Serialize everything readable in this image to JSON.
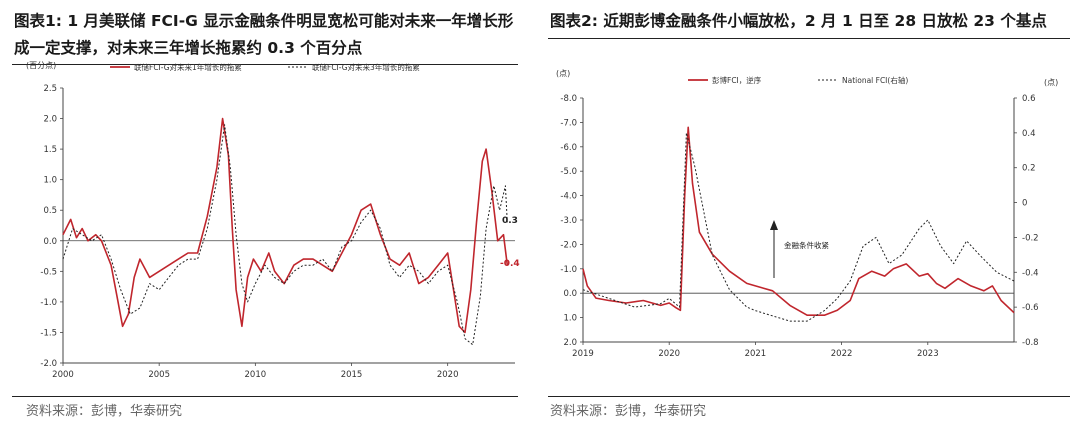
{
  "charts": [
    {
      "id": "left",
      "title": "图表1:  1 月美联储 FCI-G 显示金融条件明显宽松可能对未来一年增长形成一定支撑，对未来三年增长拖累约 0.3 个百分点",
      "unit_label": "(百分点)",
      "source": "资料来源：彭博，华泰研究",
      "end_labels": [
        "0.3",
        "-0.4"
      ]
    },
    {
      "id": "right",
      "title": "图表2:  近期彭博金融条件小幅放松，2 月 1 日至 28 日放松 23 个基点",
      "unit_label_left": "(点)",
      "unit_label_right": "(点)",
      "annotation": "金融条件收紧",
      "source": "资料来源：彭博，华泰研究"
    }
  ],
  "colors": {
    "red": "#c0262d",
    "black": "#222222",
    "zero_line": "#444444"
  },
  "chart_data": [
    {
      "type": "line",
      "title": "",
      "ylabel": "(百分点)",
      "ylim": [
        -2.0,
        2.5
      ],
      "xlim": [
        2000,
        2023.5
      ],
      "x_ticks": [
        "2000",
        "2005",
        "2010",
        "2015",
        "2020"
      ],
      "y_ticks": [
        "2.5",
        "2.0",
        "1.5",
        "1.0",
        "0.5",
        "0.0",
        "-0.5",
        "-1.0",
        "-1.5",
        "-2.0"
      ],
      "legend": "top",
      "series": [
        {
          "name": "联储FCI-G对未来1年增长的拖累",
          "style": "solid",
          "color": "#c0262d",
          "x": [
            2000.0,
            2000.4,
            2000.7,
            2001.0,
            2001.3,
            2001.7,
            2002.0,
            2002.5,
            2002.8,
            2003.1,
            2003.4,
            2003.7,
            2004.0,
            2004.5,
            2005.0,
            2005.5,
            2006.0,
            2006.5,
            2007.0,
            2007.5,
            2008.0,
            2008.3,
            2008.6,
            2008.8,
            2009.0,
            2009.3,
            2009.6,
            2009.9,
            2010.3,
            2010.7,
            2011.0,
            2011.5,
            2012.0,
            2012.5,
            2013.0,
            2013.5,
            2014.0,
            2014.5,
            2015.0,
            2015.5,
            2016.0,
            2016.5,
            2017.0,
            2017.5,
            2018.0,
            2018.5,
            2019.0,
            2019.5,
            2020.0,
            2020.3,
            2020.6,
            2020.9,
            2021.2,
            2021.5,
            2021.8,
            2022.0,
            2022.3,
            2022.6,
            2022.9,
            2023.1
          ],
          "values": [
            0.1,
            0.35,
            0.05,
            0.2,
            0.0,
            0.1,
            0.0,
            -0.4,
            -0.9,
            -1.4,
            -1.2,
            -0.6,
            -0.3,
            -0.6,
            -0.5,
            -0.4,
            -0.3,
            -0.2,
            -0.2,
            0.4,
            1.2,
            2.0,
            1.4,
            0.2,
            -0.8,
            -1.4,
            -0.6,
            -0.3,
            -0.5,
            -0.2,
            -0.5,
            -0.7,
            -0.4,
            -0.3,
            -0.3,
            -0.4,
            -0.5,
            -0.2,
            0.1,
            0.5,
            0.6,
            0.1,
            -0.3,
            -0.4,
            -0.2,
            -0.7,
            -0.6,
            -0.4,
            -0.2,
            -0.8,
            -1.4,
            -1.5,
            -0.8,
            0.3,
            1.3,
            1.5,
            0.8,
            0.0,
            0.1,
            -0.4
          ]
        },
        {
          "name": "联储FCI-G对未来3年增长的拖累",
          "style": "dashed",
          "color": "#222222",
          "x": [
            2000.0,
            2000.5,
            2001.0,
            2001.5,
            2002.0,
            2002.5,
            2003.0,
            2003.5,
            2004.0,
            2004.5,
            2005.0,
            2005.5,
            2006.0,
            2006.5,
            2007.0,
            2007.5,
            2008.0,
            2008.4,
            2008.7,
            2009.0,
            2009.3,
            2009.6,
            2010.0,
            2010.5,
            2011.0,
            2011.5,
            2012.0,
            2012.5,
            2013.0,
            2013.5,
            2014.0,
            2014.5,
            2015.0,
            2015.5,
            2016.0,
            2016.5,
            2017.0,
            2017.5,
            2018.0,
            2018.5,
            2019.0,
            2019.5,
            2020.0,
            2020.5,
            2020.9,
            2021.3,
            2021.7,
            2022.0,
            2022.4,
            2022.7,
            2023.0,
            2023.1
          ],
          "values": [
            -0.3,
            0.2,
            0.1,
            0.0,
            0.1,
            -0.3,
            -0.8,
            -1.2,
            -1.1,
            -0.7,
            -0.8,
            -0.6,
            -0.4,
            -0.3,
            -0.3,
            0.2,
            1.0,
            1.9,
            1.2,
            0.1,
            -0.7,
            -1.0,
            -0.7,
            -0.4,
            -0.6,
            -0.7,
            -0.5,
            -0.4,
            -0.4,
            -0.3,
            -0.5,
            -0.1,
            0.0,
            0.3,
            0.5,
            0.2,
            -0.4,
            -0.6,
            -0.4,
            -0.5,
            -0.7,
            -0.5,
            -0.4,
            -1.0,
            -1.6,
            -1.7,
            -0.9,
            0.2,
            0.9,
            0.5,
            0.9,
            0.3
          ]
        }
      ]
    },
    {
      "type": "line",
      "title": "",
      "ylabel": "(点)",
      "ylim": [
        2.0,
        -8.0
      ],
      "ylim_right": [
        -0.8,
        0.6
      ],
      "xlim": [
        2019,
        2024
      ],
      "x_ticks": [
        "2019",
        "2020",
        "2021",
        "2022",
        "2023"
      ],
      "y_ticks": [
        "-8.0",
        "-7.0",
        "-6.0",
        "-5.0",
        "-4.0",
        "-3.0",
        "-2.0",
        "-1.0",
        "0.0",
        "1.0",
        "2.0"
      ],
      "y_ticks_right": [
        "0.6",
        "0.4",
        "0.2",
        "0",
        "-0.2",
        "-0.4",
        "-0.6",
        "-0.8"
      ],
      "legend": "top",
      "series": [
        {
          "name": "彭博FCI，逆序",
          "style": "solid",
          "color": "#c0262d",
          "axis": "left",
          "x": [
            2019.0,
            2019.05,
            2019.15,
            2019.3,
            2019.5,
            2019.7,
            2019.9,
            2020.0,
            2020.08,
            2020.13,
            2020.18,
            2020.22,
            2020.27,
            2020.35,
            2020.5,
            2020.7,
            2020.9,
            2021.0,
            2021.2,
            2021.4,
            2021.6,
            2021.8,
            2021.95,
            2022.1,
            2022.2,
            2022.35,
            2022.5,
            2022.6,
            2022.75,
            2022.9,
            2023.0,
            2023.1,
            2023.2,
            2023.35,
            2023.5,
            2023.65,
            2023.75,
            2023.85,
            2024.0
          ],
          "values": [
            -1.0,
            -0.3,
            0.2,
            0.3,
            0.4,
            0.3,
            0.5,
            0.4,
            0.6,
            0.7,
            -4.0,
            -6.8,
            -4.5,
            -2.5,
            -1.6,
            -0.9,
            -0.4,
            -0.3,
            -0.1,
            0.5,
            0.9,
            0.9,
            0.7,
            0.3,
            -0.6,
            -0.9,
            -0.7,
            -1.0,
            -1.2,
            -0.7,
            -0.8,
            -0.4,
            -0.2,
            -0.6,
            -0.3,
            -0.1,
            -0.3,
            0.3,
            0.8
          ]
        },
        {
          "name": "National FCI(右轴)",
          "style": "dashed",
          "color": "#222222",
          "axis": "right",
          "x": [
            2019.0,
            2019.3,
            2019.6,
            2019.9,
            2020.0,
            2020.12,
            2020.2,
            2020.3,
            2020.5,
            2020.7,
            2020.9,
            2021.0,
            2021.2,
            2021.4,
            2021.6,
            2021.8,
            2021.95,
            2022.1,
            2022.25,
            2022.4,
            2022.55,
            2022.7,
            2022.9,
            2023.0,
            2023.15,
            2023.3,
            2023.45,
            2023.6,
            2023.8,
            2024.0
          ],
          "values": [
            -0.5,
            -0.55,
            -0.6,
            -0.58,
            -0.55,
            -0.6,
            0.4,
            0.2,
            -0.3,
            -0.5,
            -0.6,
            -0.62,
            -0.65,
            -0.68,
            -0.68,
            -0.62,
            -0.55,
            -0.45,
            -0.25,
            -0.2,
            -0.35,
            -0.3,
            -0.15,
            -0.1,
            -0.25,
            -0.35,
            -0.22,
            -0.3,
            -0.4,
            -0.45
          ]
        }
      ]
    }
  ]
}
